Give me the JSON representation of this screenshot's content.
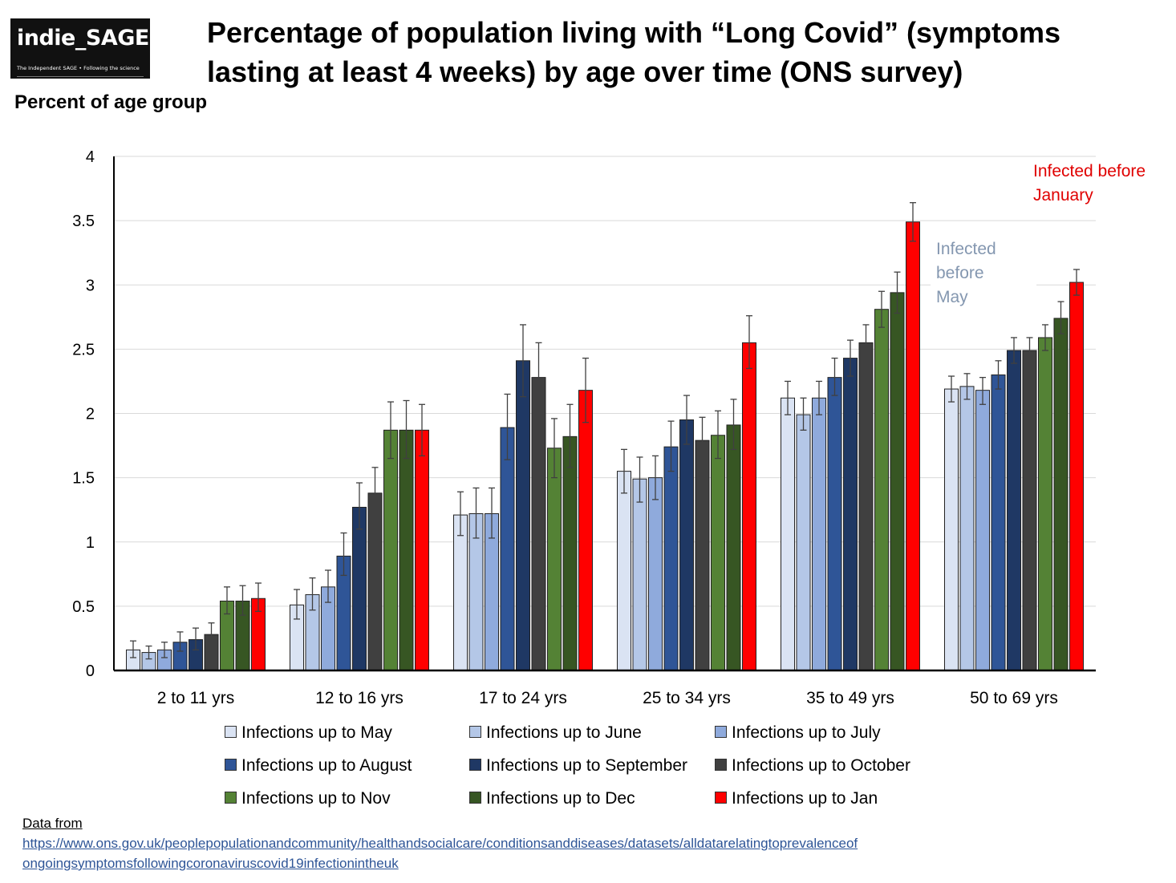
{
  "logo": {
    "name": "indie_SAGE",
    "tagline": "The Independent SAGE • Following the science"
  },
  "title": "Percentage of population living with “Long Covid” (symptoms lasting at least 4 weeks) by age over time (ONS survey)",
  "annotations": {
    "red": [
      "Infected before",
      "January"
    ],
    "grey": [
      "Infected",
      "before",
      "May"
    ]
  },
  "colors": {
    "May": "#dae3f3",
    "June": "#b4c7e7",
    "July": "#8faadc",
    "August": "#2f5597",
    "September": "#1f3864",
    "October": "#404040",
    "Nov": "#548235",
    "Dec": "#375623",
    "Jan": "#ff0000",
    "annotation_red": "#e00000",
    "annotation_grey": "#8497b0"
  },
  "chart_data": {
    "type": "bar",
    "title": "Percentage of population living with “Long Covid” (symptoms lasting at least 4 weeks) by age over time (ONS survey)",
    "ylabel": "Percent of age group",
    "xlabel": "",
    "ylim": [
      0,
      4
    ],
    "yticks": [
      0,
      0.5,
      1,
      1.5,
      2,
      2.5,
      3,
      3.5,
      4
    ],
    "ytick_labels": [
      "0",
      "0.5",
      "1",
      "1.5",
      "2",
      "2.5",
      "3",
      "3.5",
      "4"
    ],
    "grid": true,
    "legend_position": "bottom",
    "categories": [
      "2 to 11 yrs",
      "12 to 16 yrs",
      "17 to 24 yrs",
      "25 to 34 yrs",
      "35 to 49 yrs",
      "50 to 69 yrs"
    ],
    "series": [
      {
        "name": "Infections up to May",
        "color": "#dae3f3",
        "values": [
          0.16,
          0.51,
          1.21,
          1.55,
          2.12,
          2.19
        ],
        "lower": [
          0.1,
          0.4,
          1.05,
          1.38,
          1.99,
          2.09
        ],
        "upper": [
          0.23,
          0.63,
          1.39,
          1.72,
          2.25,
          2.29
        ]
      },
      {
        "name": "Infections up to June",
        "color": "#b4c7e7",
        "values": [
          0.14,
          0.59,
          1.22,
          1.49,
          1.99,
          2.21
        ],
        "lower": [
          0.09,
          0.47,
          1.03,
          1.31,
          1.87,
          2.11
        ],
        "upper": [
          0.19,
          0.72,
          1.42,
          1.66,
          2.12,
          2.31
        ]
      },
      {
        "name": "Infections up to July",
        "color": "#8faadc",
        "values": [
          0.16,
          0.65,
          1.22,
          1.5,
          2.12,
          2.18
        ],
        "lower": [
          0.1,
          0.53,
          1.03,
          1.33,
          1.99,
          2.07
        ],
        "upper": [
          0.22,
          0.78,
          1.42,
          1.67,
          2.25,
          2.28
        ]
      },
      {
        "name": "Infections up to August",
        "color": "#2f5597",
        "values": [
          0.22,
          0.89,
          1.89,
          1.74,
          2.28,
          2.3
        ],
        "lower": [
          0.15,
          0.74,
          1.64,
          1.55,
          2.14,
          2.19
        ],
        "upper": [
          0.3,
          1.07,
          2.15,
          1.94,
          2.43,
          2.41
        ]
      },
      {
        "name": "Infections up to September",
        "color": "#1f3864",
        "values": [
          0.24,
          1.27,
          2.41,
          1.95,
          2.43,
          2.49
        ],
        "lower": [
          0.16,
          1.1,
          2.13,
          1.76,
          2.29,
          2.39
        ],
        "upper": [
          0.33,
          1.46,
          2.69,
          2.14,
          2.57,
          2.59
        ]
      },
      {
        "name": "Infections up to October",
        "color": "#404040",
        "values": [
          0.28,
          1.38,
          2.28,
          1.79,
          2.55,
          2.49
        ],
        "lower": [
          0.2,
          1.2,
          2.02,
          1.61,
          2.41,
          2.39
        ],
        "upper": [
          0.37,
          1.58,
          2.55,
          1.97,
          2.69,
          2.59
        ]
      },
      {
        "name": "Infections up to Nov",
        "color": "#548235",
        "values": [
          0.54,
          1.87,
          1.73,
          1.83,
          2.81,
          2.59
        ],
        "lower": [
          0.44,
          1.65,
          1.5,
          1.65,
          2.67,
          2.49
        ],
        "upper": [
          0.65,
          2.09,
          1.96,
          2.02,
          2.95,
          2.69
        ]
      },
      {
        "name": "Infections up to Dec",
        "color": "#375623",
        "values": [
          0.54,
          1.87,
          1.82,
          1.91,
          2.94,
          2.74
        ],
        "lower": [
          0.43,
          1.65,
          1.58,
          1.72,
          2.78,
          2.62
        ],
        "upper": [
          0.66,
          2.1,
          2.07,
          2.11,
          3.1,
          2.87
        ]
      },
      {
        "name": "Infections up to Jan",
        "color": "#ff0000",
        "values": [
          0.56,
          1.87,
          2.18,
          2.55,
          3.49,
          3.02
        ],
        "lower": [
          0.46,
          1.67,
          1.93,
          2.35,
          3.34,
          2.92
        ],
        "upper": [
          0.68,
          2.07,
          2.43,
          2.76,
          3.64,
          3.12
        ]
      }
    ]
  },
  "legend": [
    {
      "label": "Infections up to May",
      "color": "#dae3f3"
    },
    {
      "label": "Infections up to June",
      "color": "#b4c7e7"
    },
    {
      "label": "Infections up to July",
      "color": "#8faadc"
    },
    {
      "label": "Infections up to August",
      "color": "#2f5597"
    },
    {
      "label": "Infections up to September",
      "color": "#1f3864"
    },
    {
      "label": "Infections up to October",
      "color": "#404040"
    },
    {
      "label": "Infections up to Nov",
      "color": "#548235"
    },
    {
      "label": "Infections up to Dec",
      "color": "#375623"
    },
    {
      "label": "Infections up to Jan",
      "color": "#ff0000"
    }
  ],
  "source": {
    "label": "Data from",
    "url_line1": "https://www.ons.gov.uk/peoplepopulationandcommunity/healthandsocialcare/conditionsanddiseases/datasets/alldatarelatingtoprevalenceof",
    "url_line2": "ongoingsymptomsfollowingcoronaviruscovid19infectionintheuk"
  }
}
